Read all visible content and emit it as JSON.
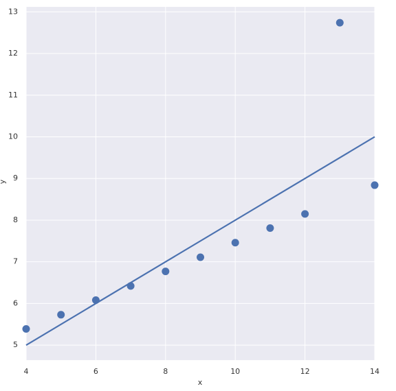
{
  "chart_data": {
    "type": "scatter",
    "x_label": "x",
    "y_label": "y",
    "x": [
      4,
      5,
      6,
      7,
      8,
      9,
      10,
      11,
      12,
      13,
      14
    ],
    "series": [
      {
        "color": "#4c72b0",
        "values": [
          5.39,
          5.73,
          6.08,
          6.42,
          6.77,
          7.11,
          7.46,
          7.81,
          8.15,
          12.74,
          8.84
        ]
      }
    ],
    "fit": {
      "x": [
        4,
        14
      ],
      "values": [
        5,
        10
      ],
      "color": "#4c72b0"
    },
    "xlim": [
      4,
      14
    ],
    "ylim": [
      4.64,
      13.12
    ],
    "xticks": [
      4,
      6,
      8,
      10,
      12,
      14
    ],
    "yticks": [
      5,
      6,
      7,
      8,
      9,
      10,
      11,
      12,
      13
    ],
    "grid": true
  }
}
